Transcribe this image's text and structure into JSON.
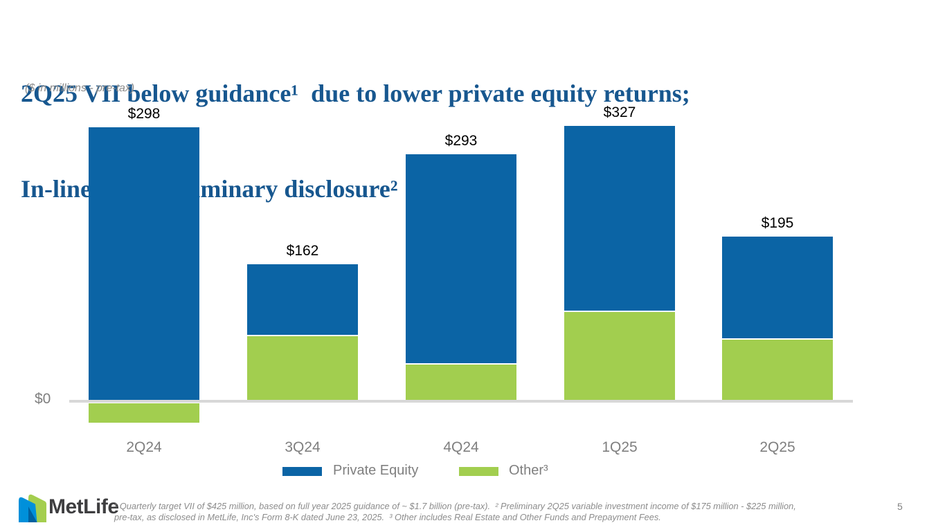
{
  "slide": {
    "title_line1": "2Q25 VII below guidance¹  due to lower private equity returns;",
    "title_line2": "In-line with preliminary disclosure²",
    "subtitle": "($ in millions - pre-tax)"
  },
  "chart_data": {
    "type": "bar",
    "stacked": true,
    "title": "2Q25 VII below guidance due to lower private equity returns; In-line with preliminary disclosure",
    "units_note": "($ in millions - pre-tax)",
    "categories": [
      "2Q24",
      "3Q24",
      "4Q24",
      "1Q25",
      "2Q25"
    ],
    "series": [
      {
        "name": "Other",
        "color": "#A2CE4F",
        "values": [
          -27,
          76,
          42,
          105,
          72
        ]
      },
      {
        "name": "Private Equity",
        "color": "#0B64A5",
        "values": [
          325,
          86,
          251,
          222,
          123
        ]
      }
    ],
    "totals": [
      298,
      162,
      293,
      327,
      195
    ],
    "total_labels": [
      "$298",
      "$162",
      "$293",
      "$327",
      "$195"
    ],
    "baseline_label": "$0",
    "ylim": [
      -40,
      360
    ],
    "grid": false,
    "legend_position": "bottom",
    "legend": [
      {
        "label": "Private Equity",
        "color": "#0B64A5"
      },
      {
        "label": "Other³",
        "color": "#A2CE4F"
      }
    ]
  },
  "footer": {
    "logo_text": "MetLife",
    "footnote_line1": "¹ Quarterly target VII of $425 million, based on full year 2025 guidance of ~ $1.7 billion (pre-tax).  ² Preliminary 2Q25 variable investment income of $175 million - $225 million,",
    "footnote_line2": "pre-tax, as disclosed in MetLife, Inc's Form 8-K dated June 23, 2025.  ³ Other includes Real Estate and Other Funds and Prepayment Fees.",
    "page_number": "5"
  },
  "colors": {
    "title_blue": "#17578F",
    "bar_blue": "#0B64A5",
    "bar_green": "#A2CE4F",
    "axis_gray": "#D8D8D8",
    "text_gray": "#7F7F7F",
    "logo_bright_blue": "#0090DA",
    "logo_dark_blue": "#0061A0",
    "logo_green": "#A4CE4E"
  }
}
